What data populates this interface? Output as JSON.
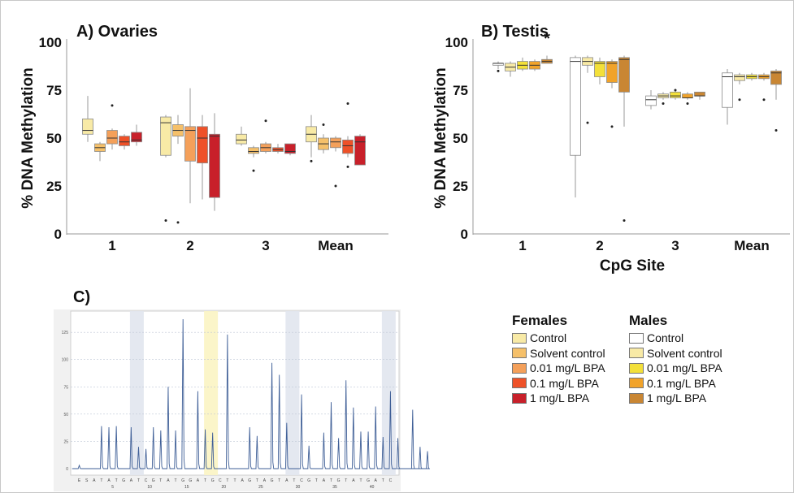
{
  "chart_data": [
    {
      "type": "boxplot",
      "title": "A) Ovaries",
      "ylabel": "% DNA Methylation",
      "ylim": [
        0,
        100
      ],
      "yticks": [
        0,
        25,
        50,
        75,
        100
      ],
      "categories": [
        "1",
        "2",
        "3",
        "Mean"
      ],
      "series": [
        {
          "name": "Control",
          "color": "#f8eaa6",
          "boxes": [
            {
              "min": 48,
              "q1": 52,
              "median": 54,
              "q3": 60,
              "max": 72,
              "outliers": []
            },
            {
              "min": 40,
              "q1": 41,
              "median": 58,
              "q3": 61,
              "max": 62,
              "outliers": [
                7
              ]
            },
            {
              "min": 46,
              "q1": 47,
              "median": 49,
              "q3": 52,
              "max": 56,
              "outliers": []
            },
            {
              "min": 40,
              "q1": 48,
              "median": 52,
              "q3": 56,
              "max": 62,
              "outliers": [
                38
              ]
            }
          ]
        },
        {
          "name": "Solvent control",
          "color": "#f5c06a",
          "boxes": [
            {
              "min": 38,
              "q1": 43,
              "median": 45,
              "q3": 47,
              "max": 48,
              "outliers": []
            },
            {
              "min": 47,
              "q1": 51,
              "median": 54,
              "q3": 57,
              "max": 62,
              "outliers": [
                6
              ]
            },
            {
              "min": 40,
              "q1": 42,
              "median": 43,
              "q3": 45,
              "max": 46,
              "outliers": [
                33
              ]
            },
            {
              "min": 42,
              "q1": 44,
              "median": 47,
              "q3": 50,
              "max": 52,
              "outliers": [
                57
              ]
            }
          ]
        },
        {
          "name": "0.01 mg/L BPA",
          "color": "#f4a05a",
          "boxes": [
            {
              "min": 44,
              "q1": 47,
              "median": 50,
              "q3": 54,
              "max": 55,
              "outliers": [
                67
              ]
            },
            {
              "min": 16,
              "q1": 38,
              "median": 54,
              "q3": 56,
              "max": 76,
              "outliers": []
            },
            {
              "min": 42,
              "q1": 43,
              "median": 45,
              "q3": 47,
              "max": 48,
              "outliers": [
                59
              ]
            },
            {
              "min": 43,
              "q1": 45,
              "median": 48,
              "q3": 50,
              "max": 51,
              "outliers": [
                25
              ]
            }
          ]
        },
        {
          "name": "0.1 mg/L BPA",
          "color": "#ee5128",
          "boxes": [
            {
              "min": 44,
              "q1": 46,
              "median": 48,
              "q3": 51,
              "max": 52,
              "outliers": []
            },
            {
              "min": 18,
              "q1": 37,
              "median": 50,
              "q3": 56,
              "max": 62,
              "outliers": []
            },
            {
              "min": 42,
              "q1": 43,
              "median": 44,
              "q3": 45,
              "max": 47,
              "outliers": []
            },
            {
              "min": 40,
              "q1": 42,
              "median": 46,
              "q3": 49,
              "max": 51,
              "outliers": [
                35,
                68
              ]
            }
          ]
        },
        {
          "name": "1 mg/L BPA",
          "color": "#c8202a",
          "boxes": [
            {
              "min": 46,
              "q1": 48,
              "median": 49,
              "q3": 53,
              "max": 57,
              "outliers": []
            },
            {
              "min": 12,
              "q1": 19,
              "median": 51,
              "q3": 52,
              "max": 63,
              "outliers": []
            },
            {
              "min": 41,
              "q1": 42,
              "median": 43,
              "q3": 47,
              "max": 47,
              "outliers": []
            },
            {
              "min": 36,
              "q1": 36,
              "median": 48,
              "q3": 51,
              "max": 52,
              "outliers": []
            }
          ]
        }
      ]
    },
    {
      "type": "boxplot",
      "title": "B) Testis",
      "ylabel": "% DNA Methylation",
      "xlabel": "CpG Site",
      "ylim": [
        0,
        100
      ],
      "yticks": [
        0,
        25,
        50,
        75,
        100
      ],
      "categories": [
        "1",
        "2",
        "3",
        "Mean"
      ],
      "annotation": {
        "text": "*",
        "category": "1"
      },
      "series": [
        {
          "name": "Control",
          "color": "#ffffff",
          "boxes": [
            {
              "min": 86,
              "q1": 88,
              "median": 89,
              "q3": 89,
              "max": 90,
              "outliers": [
                85
              ]
            },
            {
              "min": 19,
              "q1": 41,
              "median": 90,
              "q3": 92,
              "max": 93,
              "outliers": []
            },
            {
              "min": 65,
              "q1": 67,
              "median": 70,
              "q3": 72,
              "max": 75,
              "outliers": []
            },
            {
              "min": 57,
              "q1": 66,
              "median": 82,
              "q3": 84,
              "max": 86,
              "outliers": []
            }
          ]
        },
        {
          "name": "Solvent control",
          "color": "#f8eaa6",
          "boxes": [
            {
              "min": 82,
              "q1": 85,
              "median": 87,
              "q3": 89,
              "max": 90,
              "outliers": []
            },
            {
              "min": 84,
              "q1": 88,
              "median": 90,
              "q3": 92,
              "max": 93,
              "outliers": [
                58
              ]
            },
            {
              "min": 70,
              "q1": 71,
              "median": 72,
              "q3": 73,
              "max": 74,
              "outliers": [
                68
              ]
            },
            {
              "min": 78,
              "q1": 80,
              "median": 82,
              "q3": 83,
              "max": 84,
              "outliers": [
                70
              ]
            }
          ]
        },
        {
          "name": "0.01 mg/L BPA",
          "color": "#f3e03a",
          "boxes": [
            {
              "min": 85,
              "q1": 86,
              "median": 88,
              "q3": 90,
              "max": 92,
              "outliers": []
            },
            {
              "min": 78,
              "q1": 82,
              "median": 89,
              "q3": 90,
              "max": 92,
              "outliers": []
            },
            {
              "min": 70,
              "q1": 71,
              "median": 72,
              "q3": 74,
              "max": 75,
              "outliers": [
                75
              ]
            },
            {
              "min": 80,
              "q1": 81,
              "median": 82,
              "q3": 83,
              "max": 84,
              "outliers": []
            }
          ]
        },
        {
          "name": "0.1 mg/L BPA",
          "color": "#f1a32a",
          "boxes": [
            {
              "min": 85,
              "q1": 86,
              "median": 88,
              "q3": 90,
              "max": 91,
              "outliers": []
            },
            {
              "min": 76,
              "q1": 79,
              "median": 89,
              "q3": 90,
              "max": 91,
              "outliers": [
                56
              ]
            },
            {
              "min": 70,
              "q1": 71,
              "median": 71,
              "q3": 73,
              "max": 74,
              "outliers": [
                68
              ]
            },
            {
              "min": 80,
              "q1": 81,
              "median": 82,
              "q3": 83,
              "max": 84,
              "outliers": [
                70
              ]
            }
          ]
        },
        {
          "name": "1 mg/L BPA",
          "color": "#c98633",
          "boxes": [
            {
              "min": 89,
              "q1": 89,
              "median": 90,
              "q3": 91,
              "max": 93,
              "outliers": []
            },
            {
              "min": 56,
              "q1": 74,
              "median": 91,
              "q3": 92,
              "max": 93,
              "outliers": [
                7
              ]
            },
            {
              "min": 70,
              "q1": 72,
              "median": 72,
              "q3": 74,
              "max": 74,
              "outliers": []
            },
            {
              "min": 70,
              "q1": 78,
              "median": 84,
              "q3": 85,
              "max": 86,
              "outliers": [
                54
              ]
            }
          ]
        }
      ]
    },
    {
      "type": "line",
      "title": "C)",
      "ylim": [
        0,
        140
      ],
      "yticks": [
        0,
        25,
        50,
        75,
        100,
        125
      ],
      "xticks": [
        5,
        10,
        15,
        20,
        25,
        30,
        35,
        40
      ],
      "base_sequence": "ESATATGATCGTATGGATGCTTAGTAGTATCGTATGTATGATC",
      "peaks": [
        3,
        0,
        0,
        39,
        38,
        39,
        0,
        38,
        20,
        18,
        38,
        35,
        75,
        35,
        137,
        0,
        71,
        36,
        33,
        0,
        123,
        0,
        0,
        38,
        30,
        0,
        97,
        86,
        42,
        0,
        68,
        21,
        0,
        33,
        61,
        28,
        81,
        56,
        34,
        34,
        57,
        29,
        71,
        28,
        0,
        54,
        20,
        16
      ],
      "highlight_positions": [
        7.5,
        17.5,
        28.5,
        41.5
      ]
    }
  ],
  "legend": {
    "females_title": "Females",
    "males_title": "Males",
    "females": [
      {
        "label": "Control",
        "color": "#f8eaa6"
      },
      {
        "label": "Solvent control",
        "color": "#f5c06a"
      },
      {
        "label": "0.01 mg/L BPA",
        "color": "#f4a05a"
      },
      {
        "label": "0.1 mg/L BPA",
        "color": "#ee5128"
      },
      {
        "label": "1 mg/L BPA",
        "color": "#c8202a"
      }
    ],
    "males": [
      {
        "label": "Control",
        "color": "#ffffff"
      },
      {
        "label": "Solvent control",
        "color": "#f8eaa6"
      },
      {
        "label": "0.01 mg/L BPA",
        "color": "#f3e03a"
      },
      {
        "label": "0.1 mg/L BPA",
        "color": "#f1a32a"
      },
      {
        "label": "1 mg/L BPA",
        "color": "#c98633"
      }
    ]
  }
}
